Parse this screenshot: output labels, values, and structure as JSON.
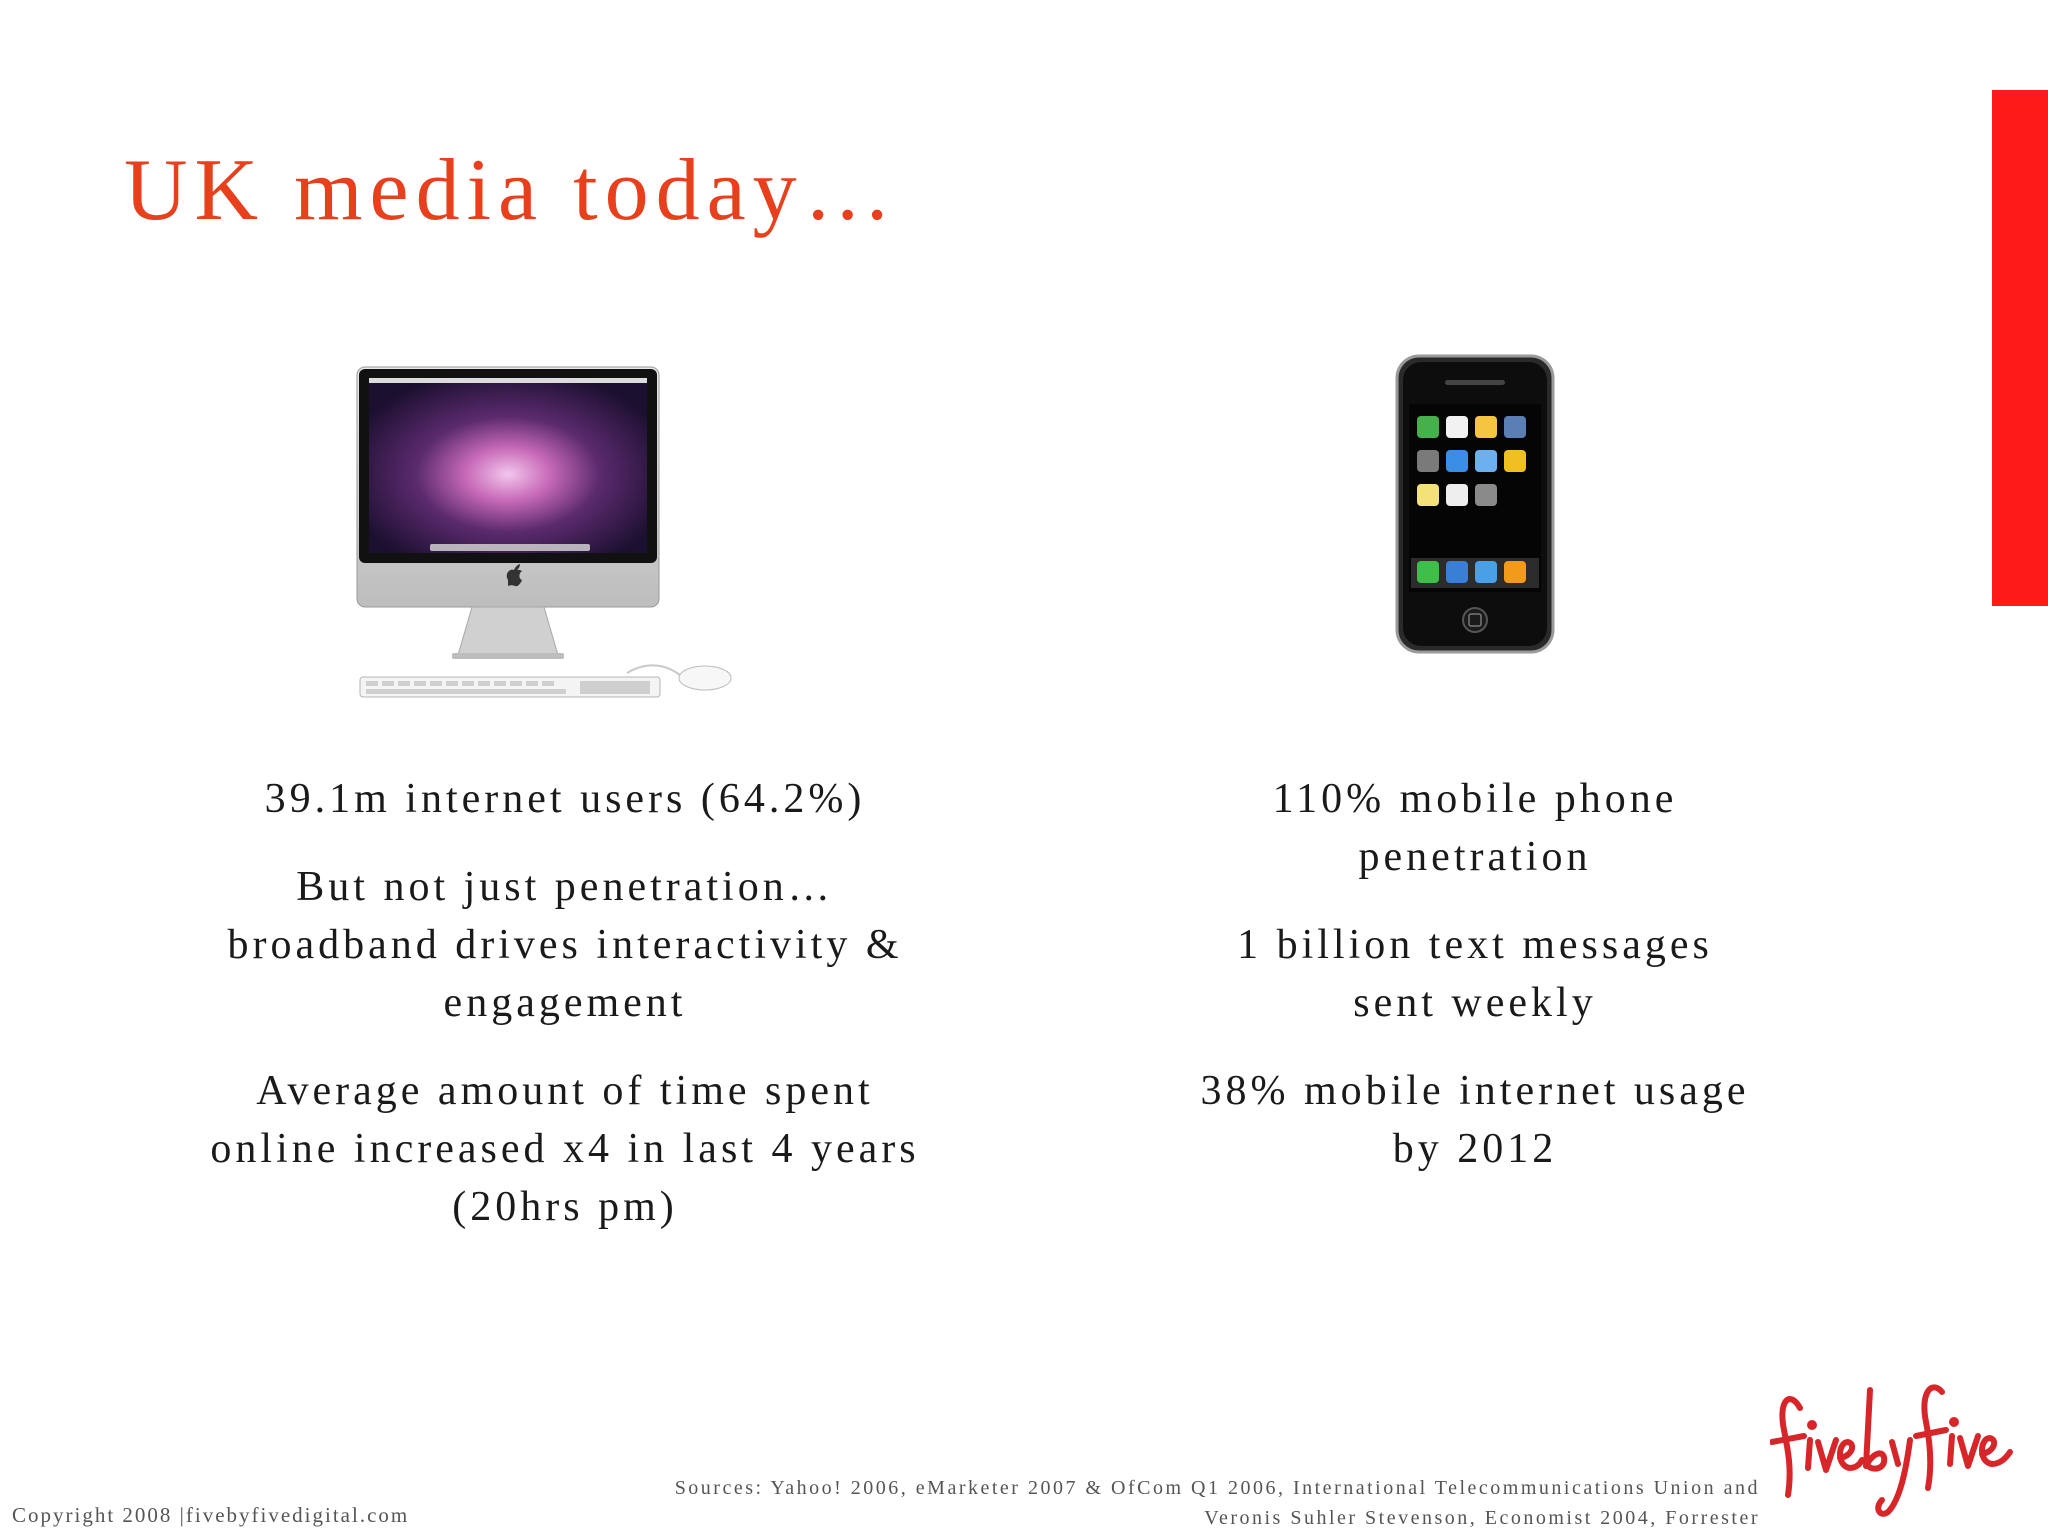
{
  "slide": {
    "title": "UK media today…",
    "accent_color": "#ff1a1a",
    "title_color": "#e8401c"
  },
  "left_column": {
    "image_icon": "imac-computer-icon",
    "paragraphs": [
      {
        "lines": [
          "39.1m internet users (64.2%)"
        ]
      },
      {
        "lines": [
          "But not just penetration…",
          "broadband drives interactivity &",
          "engagement"
        ]
      },
      {
        "lines": [
          "Average amount of time spent",
          "online increased x4 in last 4 years",
          "(20hrs pm)"
        ]
      }
    ]
  },
  "right_column": {
    "image_icon": "iphone-icon",
    "paragraphs": [
      {
        "lines": [
          "110% mobile phone",
          "penetration"
        ]
      },
      {
        "lines": [
          "1 billion text messages",
          "sent weekly"
        ]
      },
      {
        "lines": [
          "38% mobile internet usage",
          "by 2012"
        ]
      }
    ]
  },
  "footer": {
    "sources_lines": [
      "Sources: Yahoo! 2006, eMarketer 2007 & OfCom Q1 2006, International Telecommunications Union and",
      "Veronis Suhler Stevenson, Economist 2004, Forrester"
    ],
    "copyright": "Copyright 2008 |fivebyfivedigital.com",
    "logo_text": "fivebyfive",
    "logo_color": "#d7262a"
  }
}
